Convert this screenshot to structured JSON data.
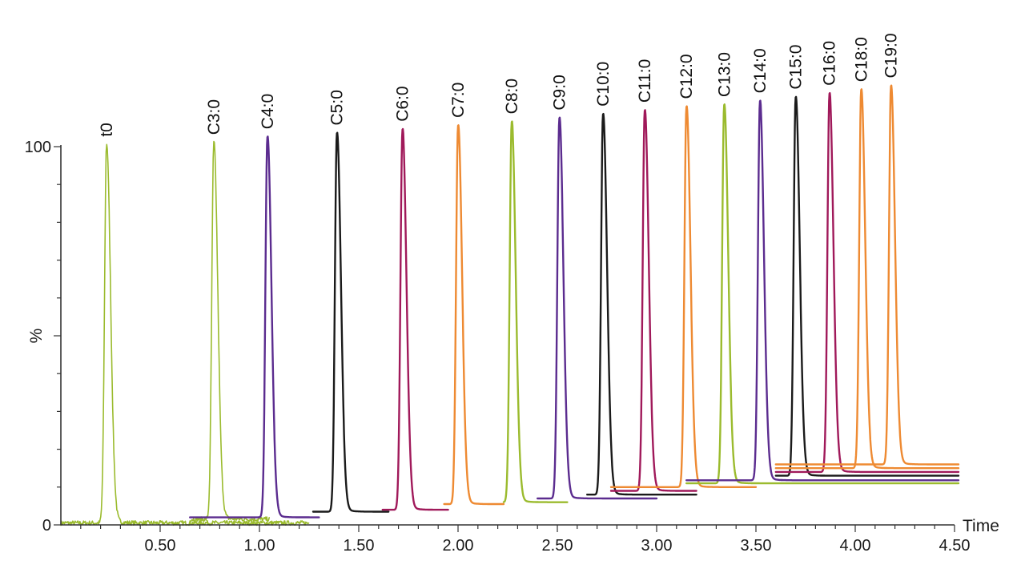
{
  "chart_data": {
    "type": "line",
    "title": "",
    "xlabel": "Time",
    "ylabel": "%",
    "xlim": [
      0.0,
      4.5
    ],
    "ylim": [
      0,
      100
    ],
    "x_ticks": [
      "0.50",
      "1.00",
      "1.50",
      "2.00",
      "2.50",
      "3.00",
      "3.50",
      "4.00",
      "4.50"
    ],
    "y_ticks": [
      "0",
      "%",
      "100"
    ],
    "grid": false,
    "legend": "none",
    "colors": {
      "green": "#9bbb2e",
      "purple": "#5b2c8f",
      "black": "#1a1a1a",
      "magenta": "#a0195a",
      "orange": "#ee8a32"
    },
    "series": [
      {
        "name": "t0",
        "color": "green",
        "peak_time": 0.23,
        "peak_height": 100.5,
        "baseline": 0.5,
        "trace_start": 0.0,
        "trace_end": 1.25,
        "noisy": true
      },
      {
        "name": "C3:0",
        "color": "green",
        "peak_time": 0.77,
        "peak_height": 101.0,
        "baseline": 1.5,
        "trace_start": 0.65,
        "trace_end": 1.05,
        "noisy": true
      },
      {
        "name": "C4:0",
        "color": "purple",
        "peak_time": 1.04,
        "peak_height": 102.5,
        "baseline": 2.0,
        "trace_start": 0.65,
        "trace_end": 1.3,
        "noisy": false
      },
      {
        "name": "C5:0",
        "color": "black",
        "peak_time": 1.39,
        "peak_height": 103.5,
        "baseline": 3.5,
        "trace_start": 1.27,
        "trace_end": 1.65,
        "noisy": false
      },
      {
        "name": "C6:0",
        "color": "magenta",
        "peak_time": 1.72,
        "peak_height": 104.5,
        "baseline": 4.0,
        "trace_start": 1.62,
        "trace_end": 1.95,
        "noisy": false
      },
      {
        "name": "C7:0",
        "color": "orange",
        "peak_time": 2.0,
        "peak_height": 105.5,
        "baseline": 5.5,
        "trace_start": 1.93,
        "trace_end": 2.23,
        "noisy": false
      },
      {
        "name": "C8:0",
        "color": "green",
        "peak_time": 2.27,
        "peak_height": 106.5,
        "baseline": 6.0,
        "trace_start": 2.23,
        "trace_end": 2.55,
        "noisy": false
      },
      {
        "name": "C9:0",
        "color": "purple",
        "peak_time": 2.51,
        "peak_height": 107.5,
        "baseline": 7.0,
        "trace_start": 2.4,
        "trace_end": 3.0,
        "noisy": false
      },
      {
        "name": "C10:0",
        "color": "black",
        "peak_time": 2.73,
        "peak_height": 108.5,
        "baseline": 8.0,
        "trace_start": 2.65,
        "trace_end": 3.2,
        "noisy": false
      },
      {
        "name": "C11:0",
        "color": "magenta",
        "peak_time": 2.94,
        "peak_height": 109.5,
        "baseline": 9.0,
        "trace_start": 2.77,
        "trace_end": 3.2,
        "noisy": false
      },
      {
        "name": "C12:0",
        "color": "orange",
        "peak_time": 3.15,
        "peak_height": 110.5,
        "baseline": 10.0,
        "trace_start": 2.77,
        "trace_end": 3.5,
        "noisy": false
      },
      {
        "name": "C13:0",
        "color": "green",
        "peak_time": 3.34,
        "peak_height": 111.0,
        "baseline": 11.0,
        "trace_start": 3.15,
        "trace_end": 4.52,
        "noisy": false
      },
      {
        "name": "C14:0",
        "color": "purple",
        "peak_time": 3.52,
        "peak_height": 112.0,
        "baseline": 11.8,
        "trace_start": 3.15,
        "trace_end": 4.52,
        "noisy": false
      },
      {
        "name": "C15:0",
        "color": "black",
        "peak_time": 3.7,
        "peak_height": 113.0,
        "baseline": 13.0,
        "trace_start": 3.6,
        "trace_end": 4.52,
        "noisy": false
      },
      {
        "name": "C16:0",
        "color": "magenta",
        "peak_time": 3.87,
        "peak_height": 114.0,
        "baseline": 14.0,
        "trace_start": 3.6,
        "trace_end": 4.52,
        "noisy": false
      },
      {
        "name": "C18:0",
        "color": "orange",
        "peak_time": 4.03,
        "peak_height": 115.0,
        "baseline": 15.0,
        "trace_start": 3.6,
        "trace_end": 4.52,
        "noisy": false
      },
      {
        "name": "C19:0",
        "color": "orange",
        "peak_time": 4.18,
        "peak_height": 116.0,
        "baseline": 16.0,
        "trace_start": 3.6,
        "trace_end": 4.52,
        "noisy": false
      }
    ]
  }
}
